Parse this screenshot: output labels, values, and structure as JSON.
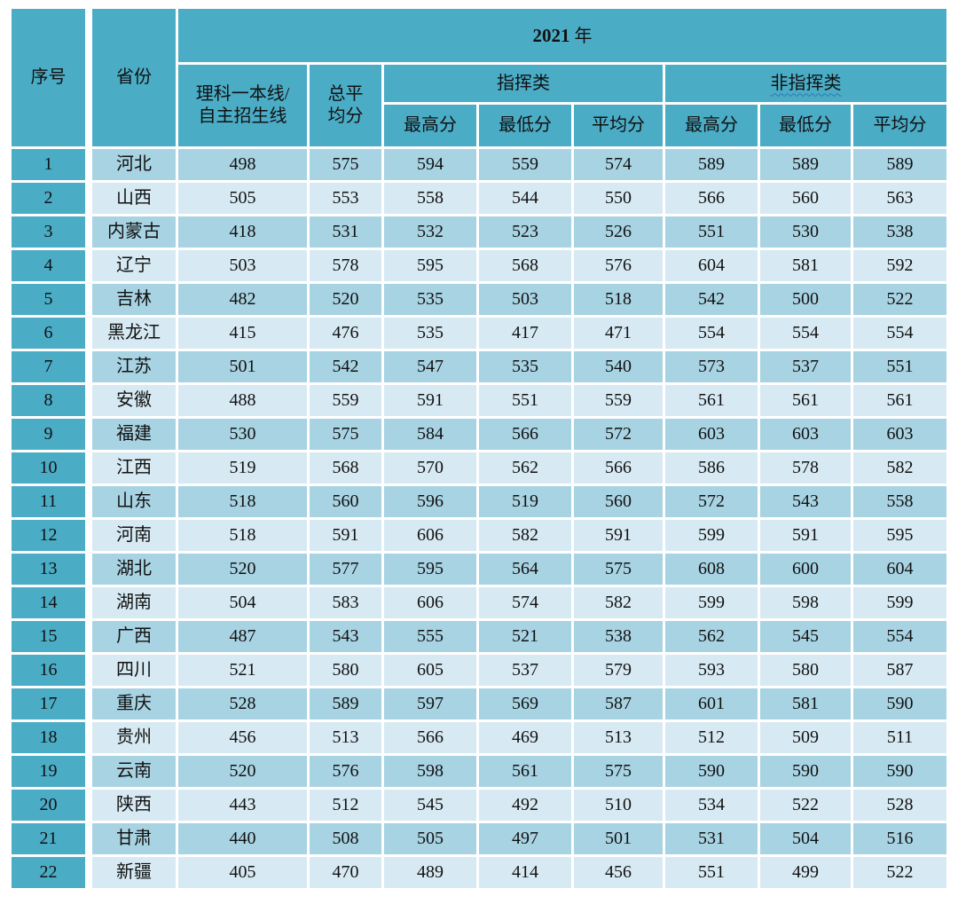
{
  "colors": {
    "header_teal": "#4BACC6",
    "row_stripe_dark": "#A8D3E3",
    "row_stripe_light": "#D7EAF3",
    "squiggle_underline": "#2E75B6",
    "text": "#111111",
    "gridline": "#FFFFFF"
  },
  "header": {
    "serial": "序号",
    "province": "省份",
    "year_number": "2021",
    "year_suffix": " 年",
    "science_line_1": "理科一本线/",
    "science_line_2": "自主招生线",
    "total_avg_1": "总平",
    "total_avg_2": "均分",
    "command_group": "指挥类",
    "non_command_group": "非指挥类",
    "sub_max": "最高分",
    "sub_min": "最低分",
    "sub_avg": "平均分"
  },
  "table": {
    "rows": [
      {
        "no": "1",
        "province": "河北",
        "line": "498",
        "total": "575",
        "cmd_max": "594",
        "cmd_min": "559",
        "cmd_avg": "574",
        "non_max": "589",
        "non_min": "589",
        "non_avg": "589"
      },
      {
        "no": "2",
        "province": "山西",
        "line": "505",
        "total": "553",
        "cmd_max": "558",
        "cmd_min": "544",
        "cmd_avg": "550",
        "non_max": "566",
        "non_min": "560",
        "non_avg": "563"
      },
      {
        "no": "3",
        "province": "内蒙古",
        "line": "418",
        "total": "531",
        "cmd_max": "532",
        "cmd_min": "523",
        "cmd_avg": "526",
        "non_max": "551",
        "non_min": "530",
        "non_avg": "538"
      },
      {
        "no": "4",
        "province": "辽宁",
        "line": "503",
        "total": "578",
        "cmd_max": "595",
        "cmd_min": "568",
        "cmd_avg": "576",
        "non_max": "604",
        "non_min": "581",
        "non_avg": "592"
      },
      {
        "no": "5",
        "province": "吉林",
        "line": "482",
        "total": "520",
        "cmd_max": "535",
        "cmd_min": "503",
        "cmd_avg": "518",
        "non_max": "542",
        "non_min": "500",
        "non_avg": "522"
      },
      {
        "no": "6",
        "province": "黑龙江",
        "line": "415",
        "total": "476",
        "cmd_max": "535",
        "cmd_min": "417",
        "cmd_avg": "471",
        "non_max": "554",
        "non_min": "554",
        "non_avg": "554"
      },
      {
        "no": "7",
        "province": "江苏",
        "line": "501",
        "total": "542",
        "cmd_max": "547",
        "cmd_min": "535",
        "cmd_avg": "540",
        "non_max": "573",
        "non_min": "537",
        "non_avg": "551"
      },
      {
        "no": "8",
        "province": "安徽",
        "line": "488",
        "total": "559",
        "cmd_max": "591",
        "cmd_min": "551",
        "cmd_avg": "559",
        "non_max": "561",
        "non_min": "561",
        "non_avg": "561"
      },
      {
        "no": "9",
        "province": "福建",
        "line": "530",
        "total": "575",
        "cmd_max": "584",
        "cmd_min": "566",
        "cmd_avg": "572",
        "non_max": "603",
        "non_min": "603",
        "non_avg": "603"
      },
      {
        "no": "10",
        "province": "江西",
        "line": "519",
        "total": "568",
        "cmd_max": "570",
        "cmd_min": "562",
        "cmd_avg": "566",
        "non_max": "586",
        "non_min": "578",
        "non_avg": "582"
      },
      {
        "no": "11",
        "province": "山东",
        "line": "518",
        "total": "560",
        "cmd_max": "596",
        "cmd_min": "519",
        "cmd_avg": "560",
        "non_max": "572",
        "non_min": "543",
        "non_avg": "558"
      },
      {
        "no": "12",
        "province": "河南",
        "line": "518",
        "total": "591",
        "cmd_max": "606",
        "cmd_min": "582",
        "cmd_avg": "591",
        "non_max": "599",
        "non_min": "591",
        "non_avg": "595"
      },
      {
        "no": "13",
        "province": "湖北",
        "line": "520",
        "total": "577",
        "cmd_max": "595",
        "cmd_min": "564",
        "cmd_avg": "575",
        "non_max": "608",
        "non_min": "600",
        "non_avg": "604"
      },
      {
        "no": "14",
        "province": "湖南",
        "line": "504",
        "total": "583",
        "cmd_max": "606",
        "cmd_min": "574",
        "cmd_avg": "582",
        "non_max": "599",
        "non_min": "598",
        "non_avg": "599"
      },
      {
        "no": "15",
        "province": "广西",
        "line": "487",
        "total": "543",
        "cmd_max": "555",
        "cmd_min": "521",
        "cmd_avg": "538",
        "non_max": "562",
        "non_min": "545",
        "non_avg": "554"
      },
      {
        "no": "16",
        "province": "四川",
        "line": "521",
        "total": "580",
        "cmd_max": "605",
        "cmd_min": "537",
        "cmd_avg": "579",
        "non_max": "593",
        "non_min": "580",
        "non_avg": "587"
      },
      {
        "no": "17",
        "province": "重庆",
        "line": "528",
        "total": "589",
        "cmd_max": "597",
        "cmd_min": "569",
        "cmd_avg": "587",
        "non_max": "601",
        "non_min": "581",
        "non_avg": "590"
      },
      {
        "no": "18",
        "province": "贵州",
        "line": "456",
        "total": "513",
        "cmd_max": "566",
        "cmd_min": "469",
        "cmd_avg": "513",
        "non_max": "512",
        "non_min": "509",
        "non_avg": "511"
      },
      {
        "no": "19",
        "province": "云南",
        "line": "520",
        "total": "576",
        "cmd_max": "598",
        "cmd_min": "561",
        "cmd_avg": "575",
        "non_max": "590",
        "non_min": "590",
        "non_avg": "590"
      },
      {
        "no": "20",
        "province": "陕西",
        "line": "443",
        "total": "512",
        "cmd_max": "545",
        "cmd_min": "492",
        "cmd_avg": "510",
        "non_max": "534",
        "non_min": "522",
        "non_avg": "528"
      },
      {
        "no": "21",
        "province": "甘肃",
        "line": "440",
        "total": "508",
        "cmd_max": "505",
        "cmd_min": "497",
        "cmd_avg": "501",
        "non_max": "531",
        "non_min": "504",
        "non_avg": "516"
      },
      {
        "no": "22",
        "province": "新疆",
        "line": "405",
        "total": "470",
        "cmd_max": "489",
        "cmd_min": "414",
        "cmd_avg": "456",
        "non_max": "551",
        "non_min": "499",
        "non_avg": "522"
      }
    ]
  }
}
